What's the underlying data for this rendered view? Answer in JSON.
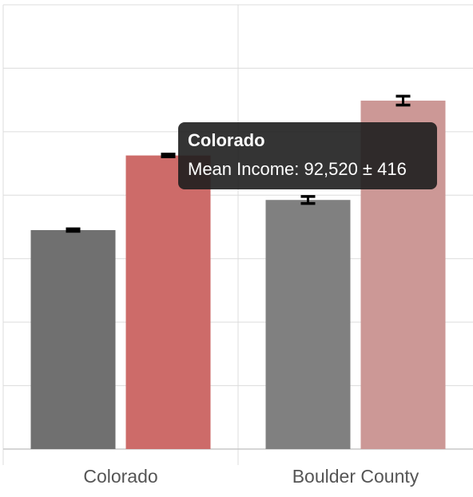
{
  "chart_data": {
    "type": "bar",
    "title": "",
    "xlabel": "",
    "ylabel": "",
    "categories": [
      "Colorado",
      "Boulder County"
    ],
    "ylim": [
      0,
      140000
    ],
    "grid": true,
    "series": [
      {
        "values": [
          69000,
          78500
        ],
        "errors": [
          400,
          1100
        ],
        "colors": [
          "#707070",
          "#808080"
        ]
      },
      {
        "values": [
          92520,
          109800
        ],
        "errors": [
          416,
          1400
        ],
        "colors": [
          "#cd6b69",
          "#cc9896"
        ]
      }
    ]
  },
  "tooltip": {
    "title": "Colorado",
    "body": "Mean Income: 92,520 ± 416"
  }
}
